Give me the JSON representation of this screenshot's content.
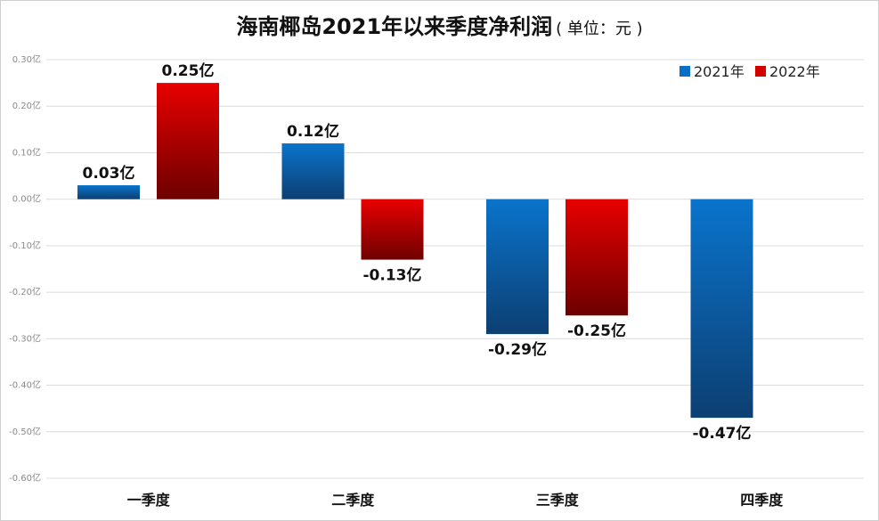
{
  "chart_data": {
    "type": "bar",
    "title": "海南椰岛2021年以来季度净利润",
    "subtitle": "( 单位：元 )",
    "xlabel": "",
    "ylabel": "",
    "categories": [
      "一季度",
      "二季度",
      "三季度",
      "四季度"
    ],
    "series": [
      {
        "name": "2021年",
        "color": "#0a6fc4",
        "values": [
          0.03,
          0.12,
          -0.29,
          -0.47
        ],
        "labels": [
          "0.03亿",
          "0.12亿",
          "-0.29亿",
          "-0.47亿"
        ]
      },
      {
        "name": "2022年",
        "color": "#d40000",
        "values": [
          0.25,
          -0.13,
          -0.25,
          null
        ],
        "labels": [
          "0.25亿",
          "-0.13亿",
          "-0.25亿",
          null
        ]
      }
    ],
    "ylim": [
      -0.6,
      0.3
    ],
    "yticks": [
      0.3,
      0.2,
      0.1,
      0.0,
      -0.1,
      -0.2,
      -0.3,
      -0.4,
      -0.5,
      -0.6
    ],
    "ytick_labels": [
      "0.30亿",
      "0.20亿",
      "0.10亿",
      "0.00亿",
      "-0.10亿",
      "-0.20亿",
      "-0.30亿",
      "-0.40亿",
      "-0.50亿",
      "-0.60亿"
    ],
    "grid": true,
    "legend_position": "top-right"
  }
}
